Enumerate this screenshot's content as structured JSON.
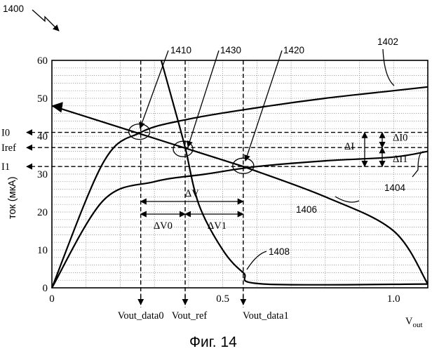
{
  "figure": {
    "number_label": "1400",
    "caption": "Фиг. 14"
  },
  "axes": {
    "ylabel": "ток (мкА)",
    "xlabel": "V",
    "xlabel_sub": "out",
    "yticks": [
      "0",
      "10",
      "20",
      "30",
      "40",
      "50",
      "60"
    ],
    "xticks": [
      "0",
      "0.5",
      "1.0"
    ],
    "xlim": [
      0,
      1.1
    ],
    "ylim": [
      0,
      60
    ]
  },
  "levels": {
    "I0": "I0",
    "Iref": "Iref",
    "I1": "I1"
  },
  "voltages": {
    "data0": "Vout_data0",
    "ref": "Vout_ref",
    "data1": "Vout_data1"
  },
  "deltas": {
    "dV": "ΔV",
    "dV0": "ΔV0",
    "dV1": "ΔV1",
    "dI": "ΔI",
    "dI0": "ΔI0",
    "dI1": "ΔI1"
  },
  "refs": {
    "r1402": "1402",
    "r1404": "1404",
    "r1406": "1406",
    "r1408": "1408",
    "r1410": "1410",
    "r1420": "1420",
    "r1430": "1430"
  },
  "chart_data": {
    "type": "line",
    "xlim": [
      0,
      1.1
    ],
    "ylim": [
      0,
      60
    ],
    "grid": true,
    "series": [
      {
        "name": "1402",
        "x": [
          0,
          0.15,
          0.26,
          0.4,
          0.6,
          0.8,
          1.0,
          1.1
        ],
        "y": [
          0,
          33,
          41,
          44.5,
          47.5,
          50,
          52,
          53
        ]
      },
      {
        "name": "1404",
        "x": [
          0,
          0.15,
          0.3,
          0.45,
          0.6,
          0.8,
          1.0,
          1.1
        ],
        "y": [
          0,
          23,
          28,
          30,
          32,
          33.5,
          34.5,
          36
        ]
      },
      {
        "name": "1406",
        "x": [
          0,
          0.26,
          0.39,
          0.56,
          0.8,
          1.0,
          1.1
        ],
        "y": [
          48,
          41,
          37,
          32,
          24,
          15,
          1
        ]
      },
      {
        "name": "1408",
        "x": [
          0.32,
          0.36,
          0.39,
          0.43,
          0.5,
          0.56,
          0.62,
          1.1
        ],
        "y": [
          60,
          47,
          37,
          22,
          10,
          4,
          1,
          1
        ]
      }
    ],
    "levels_y": {
      "I0": 41,
      "Iref": 37,
      "I1": 32
    },
    "voltages_x": {
      "data0": 0.26,
      "ref": 0.39,
      "data1": 0.56
    }
  }
}
